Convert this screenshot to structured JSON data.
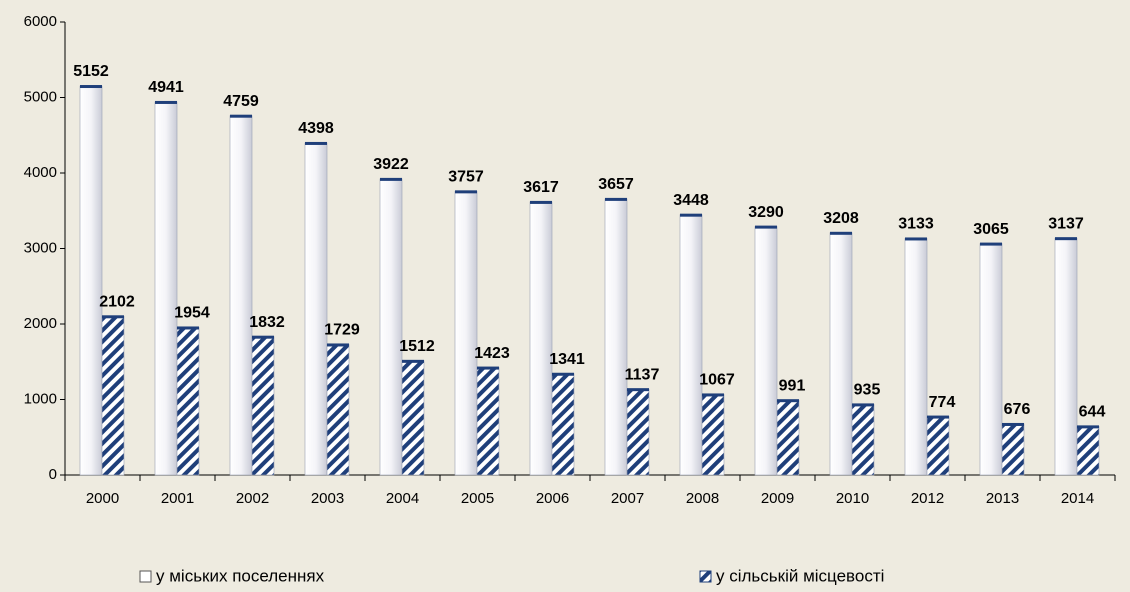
{
  "chart_data": {
    "type": "bar",
    "categories": [
      "2000",
      "2001",
      "2002",
      "2003",
      "2004",
      "2005",
      "2006",
      "2007",
      "2008",
      "2009",
      "2010",
      "2012",
      "2013",
      "2014"
    ],
    "series": [
      {
        "name": "у міських поселеннях",
        "color": "#ffffff",
        "values": [
          5152,
          4941,
          4759,
          4398,
          3922,
          3757,
          3617,
          3657,
          3448,
          3290,
          3208,
          3133,
          3065,
          3137
        ]
      },
      {
        "name": "у сільській місцевості",
        "color": "#1f3f7a",
        "values": [
          2102,
          1954,
          1832,
          1729,
          1512,
          1423,
          1341,
          1137,
          1067,
          991,
          935,
          774,
          676,
          644
        ]
      }
    ],
    "ylim": [
      0,
      6000
    ],
    "yticks": [
      0,
      1000,
      2000,
      3000,
      4000,
      5000,
      6000
    ],
    "grid": false
  }
}
